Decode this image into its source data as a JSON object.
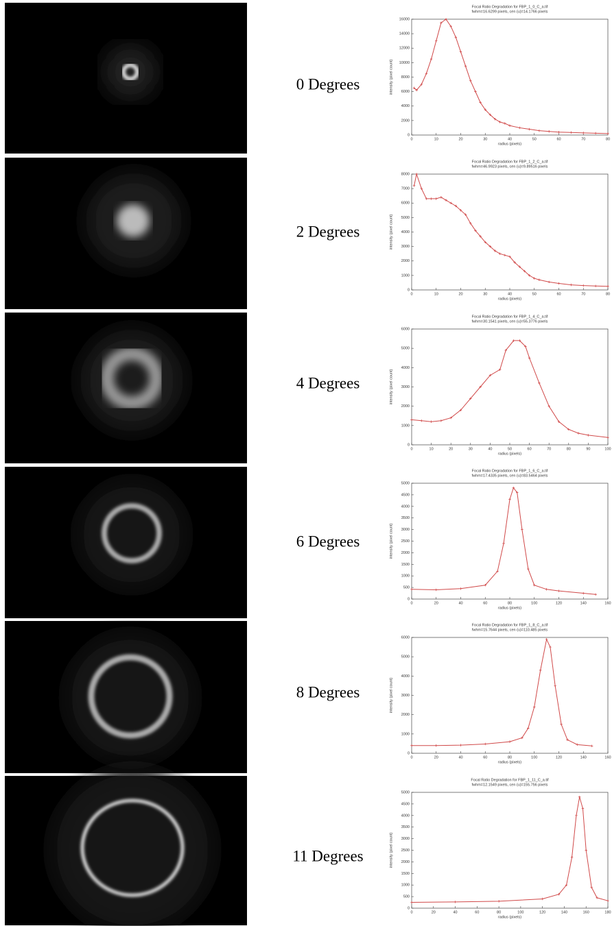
{
  "panels": [
    {
      "label": "0 Degrees"
    },
    {
      "label": "2 Degrees"
    },
    {
      "label": "4 Degrees"
    },
    {
      "label": "6 Degrees"
    },
    {
      "label": "8 Degrees"
    },
    {
      "label": "11 Degrees"
    }
  ],
  "chart_data": [
    {
      "type": "line",
      "title": "Focal Ratio Degradation for FBP_1_0_C_a.tif",
      "subtitle": "fwhm=16.6299 pixels, cen (u)=14.1766 pixels",
      "x_label": "radius (pixels)",
      "y_label": "intensity (pixel count)",
      "color": "#d04848",
      "x": [
        1,
        2,
        4,
        6,
        8,
        10,
        12,
        14,
        16,
        18,
        20,
        22,
        24,
        26,
        28,
        30,
        32,
        34,
        36,
        38,
        40,
        44,
        48,
        52,
        56,
        60,
        65,
        70,
        75,
        80
      ],
      "values": [
        6500,
        6200,
        7000,
        8500,
        10500,
        13000,
        15500,
        16000,
        15000,
        13500,
        11500,
        9500,
        7500,
        6000,
        4500,
        3500,
        2800,
        2200,
        1800,
        1600,
        1300,
        1000,
        800,
        600,
        500,
        400,
        350,
        300,
        250,
        200
      ],
      "xlim": [
        0,
        80
      ],
      "xticks": [
        0,
        10,
        20,
        30,
        40,
        50,
        60,
        70,
        80
      ],
      "ylim": [
        0,
        16000
      ],
      "yticks": [
        0,
        2000,
        4000,
        6000,
        8000,
        10000,
        12000,
        14000,
        16000
      ]
    },
    {
      "type": "line",
      "title": "Focal Ratio Degradation for FBP_1_2_C_a.tif",
      "subtitle": "fwhm=46.9923 pixels, cen (u)=9.89516 pixels",
      "x_label": "radius (pixels)",
      "y_label": "intensity (pixel count)",
      "color": "#d04848",
      "x": [
        1,
        2,
        4,
        6,
        8,
        10,
        12,
        14,
        16,
        18,
        20,
        22,
        24,
        26,
        28,
        30,
        32,
        34,
        36,
        38,
        40,
        42,
        44,
        46,
        48,
        50,
        52,
        56,
        60,
        65,
        70,
        75,
        80
      ],
      "values": [
        7200,
        8000,
        7000,
        6300,
        6300,
        6300,
        6400,
        6200,
        6000,
        5800,
        5500,
        5200,
        4600,
        4100,
        3700,
        3300,
        3000,
        2700,
        2500,
        2400,
        2300,
        1900,
        1600,
        1300,
        1000,
        800,
        700,
        550,
        450,
        350,
        300,
        270,
        250
      ],
      "xlim": [
        0,
        80
      ],
      "xticks": [
        0,
        10,
        20,
        30,
        40,
        50,
        60,
        70,
        80
      ],
      "ylim": [
        0,
        8000
      ],
      "yticks": [
        0,
        1000,
        2000,
        3000,
        4000,
        5000,
        6000,
        7000,
        8000
      ]
    },
    {
      "type": "line",
      "title": "Focal Ratio Degradation for FBP_1_4_C_a.tif",
      "subtitle": "fwhm=30.1541 pixels, cen (u)=55.3776 pixels",
      "x_label": "radius (pixels)",
      "y_label": "intensity (pixel count)",
      "color": "#d04848",
      "x": [
        0,
        5,
        10,
        15,
        20,
        25,
        30,
        35,
        40,
        45,
        48,
        52,
        55,
        58,
        60,
        65,
        70,
        75,
        80,
        85,
        90,
        100
      ],
      "values": [
        1300,
        1250,
        1200,
        1250,
        1400,
        1800,
        2400,
        3000,
        3600,
        3900,
        4900,
        5400,
        5400,
        5100,
        4500,
        3200,
        2000,
        1200,
        800,
        600,
        500,
        380
      ],
      "xlim": [
        0,
        100
      ],
      "xticks": [
        0,
        10,
        20,
        30,
        40,
        50,
        60,
        70,
        80,
        90,
        100
      ],
      "ylim": [
        0,
        6000
      ],
      "yticks": [
        0,
        1000,
        2000,
        3000,
        4000,
        5000,
        6000
      ]
    },
    {
      "type": "line",
      "title": "Focal Ratio Degradation for FBP_1_6_C_a.tif",
      "subtitle": "fwhm=17.4335 pixels, cen (u)=83.5464 pixels",
      "x_label": "radius (pixels)",
      "y_label": "intensity (pixel count)",
      "color": "#d04848",
      "x": [
        0,
        20,
        40,
        60,
        70,
        75,
        80,
        83,
        86,
        90,
        95,
        100,
        110,
        120,
        140,
        150
      ],
      "values": [
        420,
        400,
        450,
        600,
        1200,
        2400,
        4300,
        4800,
        4600,
        3000,
        1300,
        600,
        420,
        350,
        250,
        200
      ],
      "xlim": [
        0,
        160
      ],
      "xticks": [
        0,
        20,
        40,
        60,
        80,
        100,
        120,
        140,
        160
      ],
      "ylim": [
        0,
        5000
      ],
      "yticks": [
        0,
        500,
        1000,
        1500,
        2000,
        2500,
        3000,
        3500,
        4000,
        4500,
        5000
      ]
    },
    {
      "type": "line",
      "title": "Focal Ratio Degradation for FBP_1_8_C_a.tif",
      "subtitle": "fwhm=15.7644 pixels, cen (u)=110.485 pixels",
      "x_label": "radius (pixels)",
      "y_label": "intensity (pixel count)",
      "color": "#d04848",
      "x": [
        0,
        20,
        40,
        60,
        80,
        90,
        95,
        100,
        105,
        110,
        113,
        117,
        122,
        127,
        135,
        147
      ],
      "values": [
        400,
        400,
        420,
        480,
        600,
        800,
        1300,
        2400,
        4300,
        5900,
        5500,
        3500,
        1500,
        700,
        450,
        380
      ],
      "xlim": [
        0,
        160
      ],
      "xticks": [
        0,
        20,
        40,
        60,
        80,
        100,
        120,
        140,
        160
      ],
      "ylim": [
        0,
        6000
      ],
      "yticks": [
        0,
        1000,
        2000,
        3000,
        4000,
        5000,
        6000
      ]
    },
    {
      "type": "line",
      "title": "Focal Ratio Degradation for FBP_1_11_C_a.tif",
      "subtitle": "fwhm=12.1549 pixels, cen (u)=155.756 pixels",
      "x_label": "radius (pixels)",
      "y_label": "intensity (pixel count)",
      "color": "#d04848",
      "x": [
        0,
        40,
        80,
        120,
        135,
        142,
        147,
        151,
        154,
        157,
        160,
        165,
        170,
        180
      ],
      "values": [
        250,
        270,
        300,
        400,
        600,
        1000,
        2200,
        4000,
        4800,
        4300,
        2500,
        900,
        450,
        320
      ],
      "xlim": [
        0,
        180
      ],
      "xticks": [
        0,
        20,
        40,
        60,
        80,
        100,
        120,
        140,
        160,
        180
      ],
      "ylim": [
        0,
        5000
      ],
      "yticks": [
        0,
        500,
        1000,
        1500,
        2000,
        2500,
        3000,
        3500,
        4000,
        4500,
        5000
      ]
    }
  ]
}
